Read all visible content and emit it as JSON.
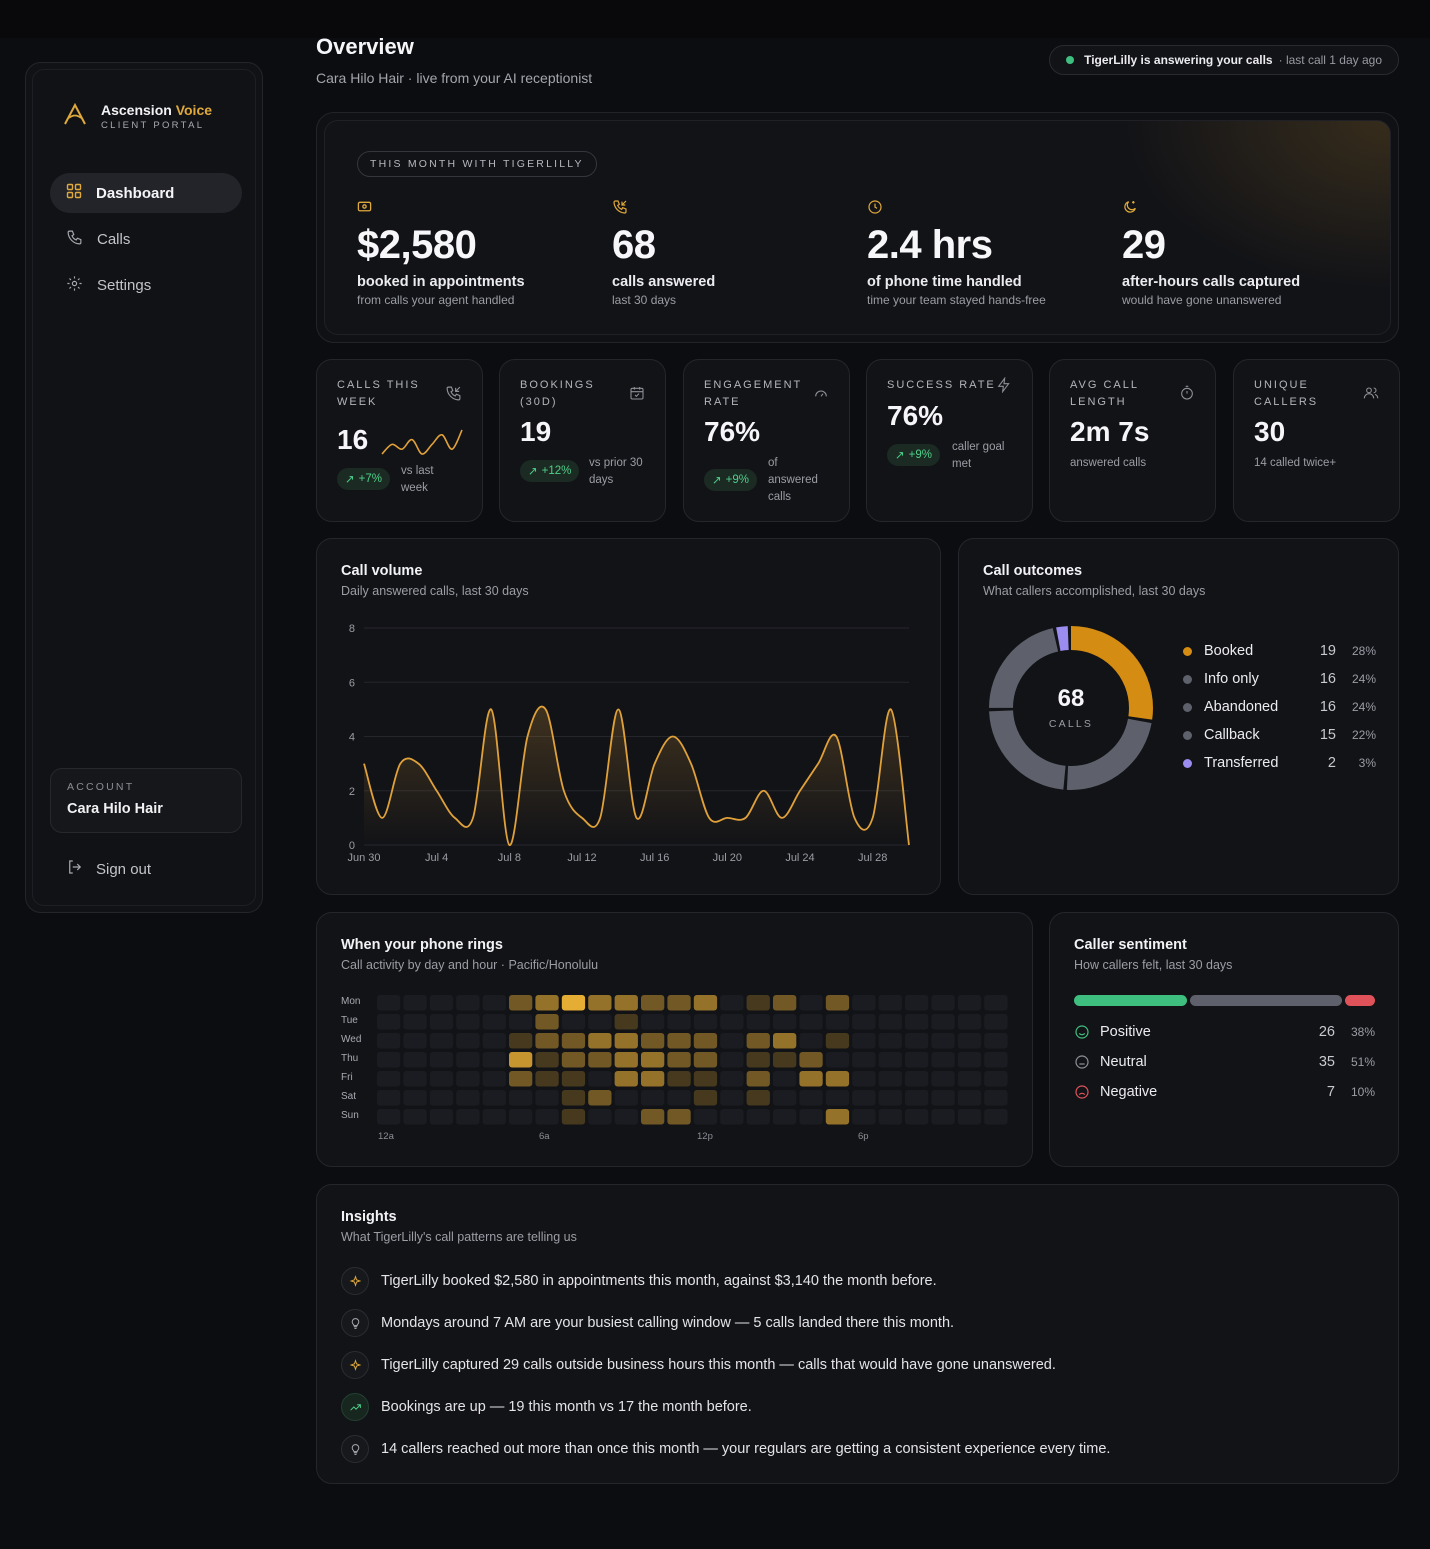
{
  "brand": {
    "name_main": "Ascension",
    "name_accent": "Voice",
    "subtitle": "CLIENT PORTAL"
  },
  "nav": [
    {
      "label": "Dashboard",
      "icon": "grid-icon",
      "active": true
    },
    {
      "label": "Calls",
      "icon": "phone-icon",
      "active": false
    },
    {
      "label": "Settings",
      "icon": "gear-icon",
      "active": false
    }
  ],
  "account": {
    "label": "ACCOUNT",
    "name": "Cara Hilo Hair"
  },
  "signout": {
    "label": "Sign out"
  },
  "header": {
    "title": "Overview",
    "subtitle": "Cara Hilo Hair · live from your AI receptionist"
  },
  "status": {
    "text": "TigerLilly is answering your calls",
    "detail": "· last call 1 day ago",
    "color": "#3fbf7f"
  },
  "hero": {
    "pill": "THIS MONTH WITH TIGERLILLY",
    "stats": [
      {
        "icon": "money-icon",
        "value": "$2,580",
        "label": "booked in appointments",
        "sub": "from calls your agent handled"
      },
      {
        "icon": "phone-incoming-icon",
        "value": "68",
        "label": "calls answered",
        "sub": "last 30 days"
      },
      {
        "icon": "clock-icon",
        "value": "2.4 hrs",
        "label": "of phone time handled",
        "sub": "time your team stayed hands-free"
      },
      {
        "icon": "moon-icon",
        "value": "29",
        "label": "after-hours calls captured",
        "sub": "would have gone unanswered"
      }
    ]
  },
  "kpis": [
    {
      "label": "CALLS THIS WEEK",
      "icon": "phone-incoming-icon",
      "value": "16",
      "badge": "+7%",
      "note": "vs last week",
      "sparkline": [
        2,
        4,
        3,
        5,
        2,
        4,
        6,
        3,
        7
      ]
    },
    {
      "label": "BOOKINGS (30D)",
      "icon": "calendar-icon",
      "value": "19",
      "badge": "+12%",
      "note": "vs prior 30 days"
    },
    {
      "label": "ENGAGEMENT RATE",
      "icon": "gauge-icon",
      "value": "76%",
      "badge": "+9%",
      "note": "of answered calls"
    },
    {
      "label": "SUCCESS RATE",
      "icon": "bolt-icon",
      "value": "76%",
      "badge": "+9%",
      "note": "caller goal met"
    },
    {
      "label": "AVG CALL LENGTH",
      "icon": "timer-icon",
      "value": "2m 7s",
      "note": "answered calls"
    },
    {
      "label": "UNIQUE CALLERS",
      "icon": "users-icon",
      "value": "30",
      "note": "14 called twice+"
    }
  ],
  "call_volume": {
    "title": "Call volume",
    "subtitle": "Daily answered calls, last 30 days",
    "line_color": "#e0a13a"
  },
  "chart_data": {
    "type": "line",
    "title": "Call volume",
    "subtitle": "Daily answered calls, last 30 days",
    "x_ticks": [
      "Jun 30",
      "Jul 4",
      "Jul 8",
      "Jul 12",
      "Jul 16",
      "Jul 20",
      "Jul 24",
      "Jul 28"
    ],
    "y_ticks": [
      0,
      2,
      4,
      6,
      8
    ],
    "ylim": [
      0,
      8
    ],
    "grid": true,
    "series": [
      {
        "values": [
          3,
          1,
          3,
          3,
          2,
          1,
          1,
          5,
          0,
          4,
          5,
          2,
          1,
          1,
          5,
          1,
          3,
          4,
          3,
          1,
          1,
          1,
          2,
          1,
          2,
          3,
          4,
          1,
          1,
          5,
          0
        ]
      }
    ]
  },
  "outcomes": {
    "title": "Call outcomes",
    "subtitle": "What callers accomplished, last 30 days",
    "center_value": "68",
    "center_label": "CALLS",
    "items": [
      {
        "label": "Booked",
        "count": "19",
        "pct": "28%",
        "color": "#d48c12"
      },
      {
        "label": "Info only",
        "count": "16",
        "pct": "24%",
        "color": "#5e616c"
      },
      {
        "label": "Abandoned",
        "count": "16",
        "pct": "24%",
        "color": "#5e616c"
      },
      {
        "label": "Callback",
        "count": "15",
        "pct": "22%",
        "color": "#5e616c"
      },
      {
        "label": "Transferred",
        "count": "2",
        "pct": "3%",
        "color": "#9b8cf0"
      }
    ]
  },
  "heatmap": {
    "title": "When your phone rings",
    "subtitle": "Call activity by day and hour · Pacific/Honolulu",
    "days": [
      "Mon",
      "Tue",
      "Wed",
      "Thu",
      "Fri",
      "Sat",
      "Sun"
    ],
    "hour_labels": [
      "12a",
      "6a",
      "12p",
      "6p"
    ],
    "color": "#e6ad35",
    "values": [
      [
        0,
        0,
        0,
        0,
        0,
        2,
        3,
        5,
        3,
        3,
        2,
        2,
        3,
        0,
        1,
        2,
        0,
        2,
        0,
        0,
        0,
        0,
        0,
        0
      ],
      [
        0,
        0,
        0,
        0,
        0,
        0,
        2,
        0,
        0,
        1,
        0,
        0,
        0,
        0,
        0,
        0,
        0,
        0,
        0,
        0,
        0,
        0,
        0,
        0
      ],
      [
        0,
        0,
        0,
        0,
        0,
        1,
        2,
        2,
        3,
        3,
        2,
        2,
        2,
        0,
        2,
        3,
        0,
        1,
        0,
        0,
        0,
        0,
        0,
        0
      ],
      [
        0,
        0,
        0,
        0,
        0,
        4,
        1,
        2,
        2,
        3,
        3,
        2,
        2,
        0,
        1,
        1,
        2,
        0,
        0,
        0,
        0,
        0,
        0,
        0
      ],
      [
        0,
        0,
        0,
        0,
        0,
        2,
        1,
        1,
        0,
        3,
        3,
        1,
        1,
        0,
        2,
        0,
        3,
        3,
        0,
        0,
        0,
        0,
        0,
        0
      ],
      [
        0,
        0,
        0,
        0,
        0,
        0,
        0,
        1,
        2,
        0,
        0,
        0,
        1,
        0,
        1,
        0,
        0,
        0,
        0,
        0,
        0,
        0,
        0,
        0
      ],
      [
        0,
        0,
        0,
        0,
        0,
        0,
        0,
        1,
        0,
        0,
        2,
        2,
        0,
        0,
        0,
        0,
        0,
        3,
        0,
        0,
        0,
        0,
        0,
        0
      ]
    ]
  },
  "sentiment": {
    "title": "Caller sentiment",
    "subtitle": "How callers felt, last 30 days",
    "items": [
      {
        "label": "Positive",
        "count": "26",
        "pct": "38%",
        "color": "#3fbf7f",
        "icon": "smile-icon"
      },
      {
        "label": "Neutral",
        "count": "35",
        "pct": "51%",
        "color": "#5e616c",
        "icon": "neutral-face-icon"
      },
      {
        "label": "Negative",
        "count": "7",
        "pct": "10%",
        "color": "#e0525a",
        "icon": "frown-icon"
      }
    ]
  },
  "insights": {
    "title": "Insights",
    "subtitle": "What TigerLilly's call patterns are telling us",
    "items": [
      {
        "icon": "sparkle-icon",
        "text": "TigerLilly booked $2,580 in appointments this month, against $3,140 the month before."
      },
      {
        "icon": "lightbulb-icon",
        "text": "Mondays around 7 AM are your busiest calling window — 5 calls landed there this month."
      },
      {
        "icon": "sparkle-icon",
        "text": "TigerLilly captured 29 calls outside business hours this month — calls that would have gone unanswered."
      },
      {
        "icon": "trend-up-icon",
        "text": "Bookings are up — 19 this month vs 17 the month before."
      },
      {
        "icon": "lightbulb-icon",
        "text": "14 callers reached out more than once this month — your regulars are getting a consistent experience every time."
      }
    ]
  }
}
